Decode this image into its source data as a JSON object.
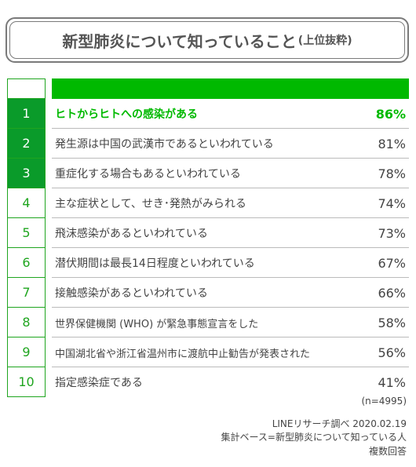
{
  "title": {
    "main": "新型肺炎について知っていること",
    "sub": "(上位抜粋)"
  },
  "colors": {
    "accent": "#00b900",
    "rank_dark": "#0a9b2a",
    "rank_border": "#1fa51f",
    "text": "#444444"
  },
  "chart_data": {
    "type": "table",
    "rows": [
      {
        "rank": "1",
        "label": "ヒトからヒトへの感染がある",
        "value": "86%",
        "pct": 86
      },
      {
        "rank": "2",
        "label": "発生源は中国の武漢市であるといわれている",
        "value": "81%",
        "pct": 81
      },
      {
        "rank": "3",
        "label": "重症化する場合もあるといわれている",
        "value": "78%",
        "pct": 78
      },
      {
        "rank": "4",
        "label": "主な症状として、せき･発熱がみられる",
        "value": "74%",
        "pct": 74
      },
      {
        "rank": "5",
        "label": "飛沫感染があるといわれている",
        "value": "73%",
        "pct": 73
      },
      {
        "rank": "6",
        "label": "潜伏期間は最長14日程度といわれている",
        "value": "67%",
        "pct": 67
      },
      {
        "rank": "7",
        "label": "接触感染があるといわれている",
        "value": "66%",
        "pct": 66
      },
      {
        "rank": "8",
        "label": "世界保健機関 (WHO) が緊急事態宣言をした",
        "value": "58%",
        "pct": 58
      },
      {
        "rank": "9",
        "label": "中国湖北省や浙江省温州市に渡航中止勧告が発表された",
        "value": "56%",
        "pct": 56
      },
      {
        "rank": "10",
        "label": "指定感染症である",
        "value": "41%",
        "pct": 41
      }
    ]
  },
  "footer": {
    "sample": "(n=4995)",
    "source": "LINEリサーチ調べ 2020.02.19",
    "base": "集計ベース=新型肺炎について知っている人",
    "note": "複数回答"
  }
}
